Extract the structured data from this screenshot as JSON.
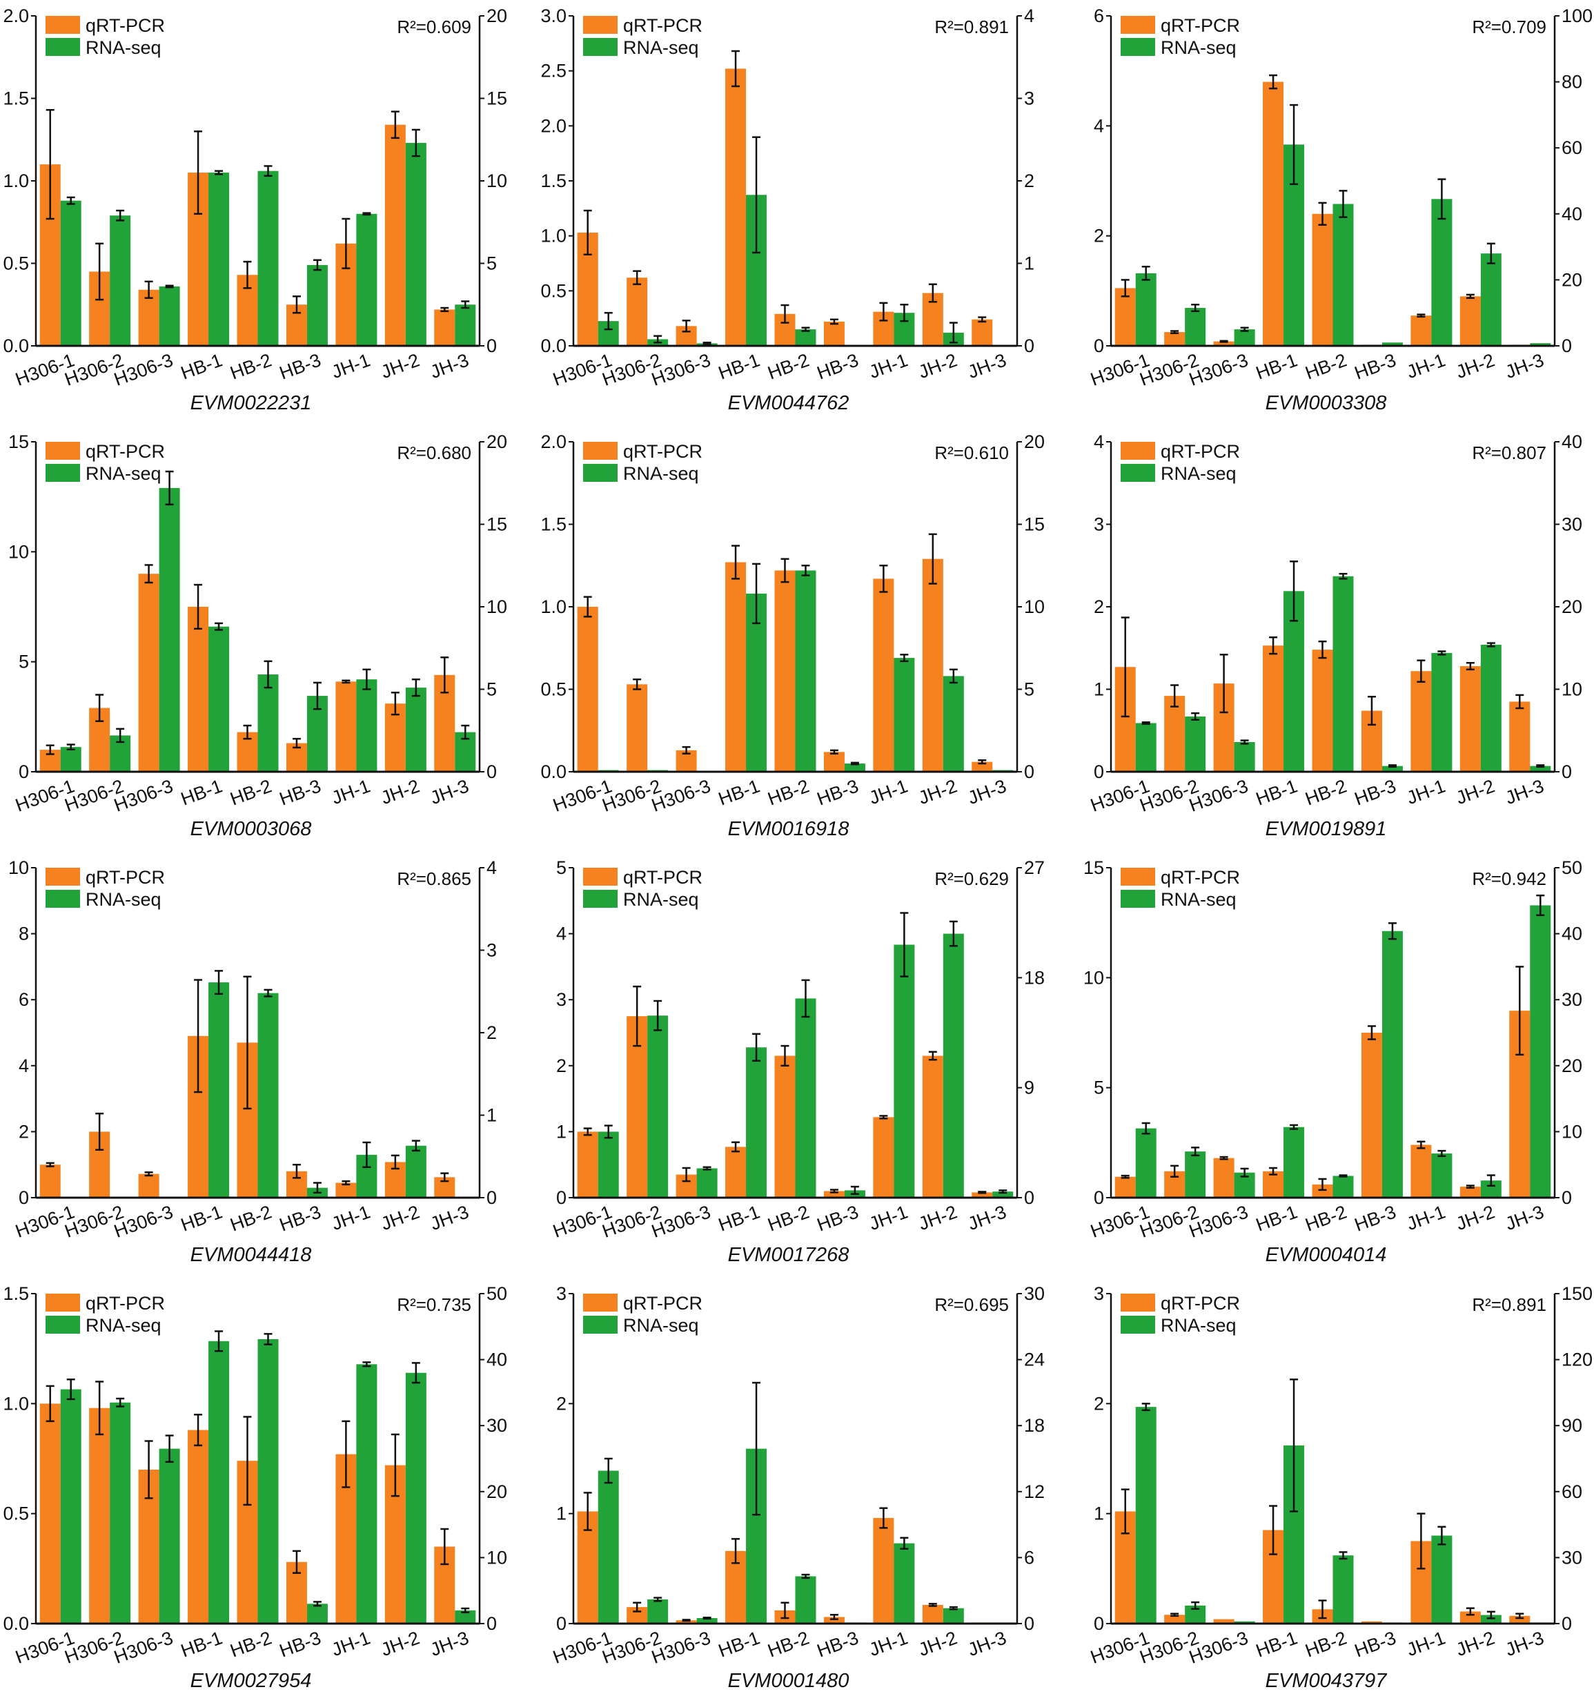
{
  "colors": {
    "qrt": "#F5821F",
    "rna": "#22A33A",
    "axis": "#111111"
  },
  "chart_data": {
    "type": "bar",
    "layout": "3 columns x 4 rows grid of dual-axis grouped bar charts",
    "categories": [
      "H306-1",
      "H306-2",
      "H306-3",
      "HB-1",
      "HB-2",
      "HB-3",
      "JH-1",
      "JH-2",
      "JH-3"
    ],
    "legend": [
      "qRT-PCR",
      "RNA-seq"
    ],
    "legend_placement": "top-left",
    "panels": [
      {
        "title": "EVM0022231",
        "r2": "R²=0.609",
        "left_ylim": [
          0,
          2.0
        ],
        "left_ticks": [
          "0.0",
          "0.5",
          "1.0",
          "1.5",
          "2.0"
        ],
        "right_ylim": [
          0,
          20
        ],
        "right_ticks": [
          "0",
          "5",
          "10",
          "15",
          "20"
        ],
        "qrt": [
          1.1,
          0.45,
          0.34,
          1.05,
          0.43,
          0.25,
          0.62,
          1.34,
          0.22
        ],
        "qrt_err": [
          0.33,
          0.17,
          0.05,
          0.25,
          0.08,
          0.05,
          0.15,
          0.08,
          0.01
        ],
        "rna": [
          8.8,
          7.9,
          3.6,
          10.5,
          10.6,
          4.9,
          8.0,
          12.3,
          2.5
        ],
        "rna_err": [
          0.2,
          0.3,
          0.05,
          0.1,
          0.3,
          0.3,
          0.05,
          0.8,
          0.2
        ]
      },
      {
        "title": "EVM0044762",
        "r2": "R²=0.891",
        "left_ylim": [
          0,
          3.0
        ],
        "left_ticks": [
          "0.0",
          "0.5",
          "1.0",
          "1.5",
          "2.0",
          "2.5",
          "3.0"
        ],
        "right_ylim": [
          0,
          4
        ],
        "right_ticks": [
          "0",
          "1",
          "2",
          "3",
          "4"
        ],
        "qrt": [
          1.03,
          0.62,
          0.18,
          2.52,
          0.29,
          0.22,
          0.31,
          0.48,
          0.24
        ],
        "qrt_err": [
          0.2,
          0.06,
          0.05,
          0.16,
          0.08,
          0.02,
          0.08,
          0.08,
          0.02
        ],
        "rna": [
          0.3,
          0.08,
          0.03,
          1.83,
          0.2,
          0,
          0.4,
          0.16,
          0
        ],
        "rna_err": [
          0.1,
          0.04,
          0.01,
          0.7,
          0.02,
          0,
          0.1,
          0.12,
          0
        ]
      },
      {
        "title": "EVM0003308",
        "r2": "R²=0.709",
        "left_ylim": [
          0,
          6
        ],
        "left_ticks": [
          "0",
          "2",
          "4",
          "6"
        ],
        "right_ylim": [
          0,
          100
        ],
        "right_ticks": [
          "0",
          "20",
          "40",
          "60",
          "80",
          "100"
        ],
        "qrt": [
          1.05,
          0.25,
          0.08,
          4.8,
          2.4,
          0.02,
          0.55,
          0.9,
          0.02
        ],
        "qrt_err": [
          0.15,
          0.02,
          0.01,
          0.12,
          0.2,
          0,
          0.02,
          0.03,
          0
        ],
        "rna": [
          22,
          11.5,
          5,
          61,
          43,
          1,
          44.5,
          28,
          0.8
        ],
        "rna_err": [
          2,
          1,
          0.5,
          12,
          4,
          0,
          6,
          3,
          0
        ]
      },
      {
        "title": "EVM0003068",
        "r2": "R²=0.680",
        "left_ylim": [
          0,
          15
        ],
        "left_ticks": [
          "0",
          "5",
          "10",
          "15"
        ],
        "right_ylim": [
          0,
          20
        ],
        "right_ticks": [
          "0",
          "5",
          "10",
          "15",
          "20"
        ],
        "qrt": [
          1.0,
          2.9,
          9.0,
          7.5,
          1.8,
          1.3,
          4.1,
          3.1,
          4.4
        ],
        "qrt_err": [
          0.2,
          0.6,
          0.4,
          1.0,
          0.3,
          0.2,
          0.05,
          0.5,
          0.8
        ],
        "rna": [
          1.5,
          2.2,
          17.2,
          8.8,
          5.9,
          4.6,
          5.6,
          5.1,
          2.4
        ],
        "rna_err": [
          0.15,
          0.4,
          1.0,
          0.2,
          0.8,
          0.8,
          0.6,
          0.5,
          0.4
        ]
      },
      {
        "title": "EVM0016918",
        "r2": "R²=0.610",
        "left_ylim": [
          0,
          2.0
        ],
        "left_ticks": [
          "0.0",
          "0.5",
          "1.0",
          "1.5",
          "2.0"
        ],
        "right_ylim": [
          0,
          20
        ],
        "right_ticks": [
          "0",
          "5",
          "10",
          "15",
          "20"
        ],
        "qrt": [
          1.0,
          0.53,
          0.13,
          1.27,
          1.22,
          0.12,
          1.17,
          1.29,
          0.06
        ],
        "qrt_err": [
          0.06,
          0.03,
          0.02,
          0.1,
          0.07,
          0.01,
          0.08,
          0.15,
          0.01
        ],
        "rna": [
          0.1,
          0.1,
          0.05,
          10.8,
          12.2,
          0.5,
          6.9,
          5.8,
          0.1
        ],
        "rna_err": [
          0,
          0,
          0,
          1.8,
          0.3,
          0.05,
          0.2,
          0.4,
          0
        ]
      },
      {
        "title": "EVM0019891",
        "r2": "R²=0.807",
        "left_ylim": [
          0,
          4
        ],
        "left_ticks": [
          "0",
          "1",
          "2",
          "3",
          "4"
        ],
        "right_ylim": [
          0,
          40
        ],
        "right_ticks": [
          "0",
          "10",
          "20",
          "30",
          "40"
        ],
        "qrt": [
          1.27,
          0.92,
          1.07,
          1.53,
          1.48,
          0.74,
          1.22,
          1.28,
          0.85
        ],
        "qrt_err": [
          0.6,
          0.13,
          0.35,
          0.1,
          0.1,
          0.17,
          0.13,
          0.04,
          0.08
        ],
        "rna": [
          5.9,
          6.7,
          3.6,
          21.9,
          23.7,
          0.7,
          14.4,
          15.4,
          0.7
        ],
        "rna_err": [
          0.1,
          0.4,
          0.2,
          3.6,
          0.3,
          0.1,
          0.2,
          0.2,
          0.1
        ]
      },
      {
        "title": "EVM0044418",
        "r2": "R²=0.865",
        "left_ylim": [
          0,
          10
        ],
        "left_ticks": [
          "0",
          "2",
          "4",
          "6",
          "8",
          "10"
        ],
        "right_ylim": [
          0,
          4
        ],
        "right_ticks": [
          "0",
          "1",
          "2",
          "3",
          "4"
        ],
        "qrt": [
          1.0,
          2.0,
          0.72,
          4.9,
          4.7,
          0.8,
          0.45,
          1.08,
          0.62
        ],
        "qrt_err": [
          0.05,
          0.55,
          0.05,
          1.7,
          2.0,
          0.2,
          0.05,
          0.2,
          0.12
        ],
        "rna": [
          0,
          0,
          0,
          2.61,
          2.48,
          0.12,
          0.52,
          0.63,
          0.01
        ],
        "rna_err": [
          0,
          0,
          0,
          0.14,
          0.04,
          0.06,
          0.15,
          0.06,
          0
        ]
      },
      {
        "title": "EVM0017268",
        "r2": "R²=0.629",
        "left_ylim": [
          0,
          5
        ],
        "left_ticks": [
          "0",
          "1",
          "2",
          "3",
          "4",
          "5"
        ],
        "right_ylim": [
          0,
          27
        ],
        "right_ticks": [
          "0",
          "9",
          "18",
          "27"
        ],
        "qrt": [
          1.0,
          2.75,
          0.35,
          0.77,
          2.15,
          0.1,
          1.22,
          2.15,
          0.08
        ],
        "qrt_err": [
          0.05,
          0.45,
          0.1,
          0.07,
          0.15,
          0.02,
          0.02,
          0.06,
          0.01
        ],
        "rna": [
          5.4,
          14.9,
          2.4,
          12.3,
          16.3,
          0.6,
          20.7,
          21.6,
          0.5
        ],
        "rna_err": [
          0.5,
          1.2,
          0.1,
          1.1,
          1.5,
          0.3,
          2.6,
          1.0,
          0.1
        ]
      },
      {
        "title": "EVM0004014",
        "r2": "R²=0.942",
        "left_ylim": [
          0,
          15
        ],
        "left_ticks": [
          "0",
          "5",
          "10",
          "15"
        ],
        "right_ylim": [
          0,
          50
        ],
        "right_ticks": [
          "0",
          "10",
          "20",
          "30",
          "40",
          "50"
        ],
        "qrt": [
          0.95,
          1.2,
          1.8,
          1.2,
          0.6,
          7.5,
          2.4,
          0.5,
          8.5
        ],
        "qrt_err": [
          0.05,
          0.25,
          0.05,
          0.15,
          0.25,
          0.3,
          0.15,
          0.05,
          2.0
        ],
        "rna": [
          10.5,
          7.0,
          3.8,
          10.7,
          3.3,
          40.4,
          6.7,
          2.6,
          44.3
        ],
        "rna_err": [
          0.8,
          0.6,
          0.6,
          0.3,
          0.1,
          1.2,
          0.4,
          0.8,
          1.5
        ]
      },
      {
        "title": "EVM0027954",
        "r2": "R²=0.735",
        "left_ylim": [
          0,
          1.5
        ],
        "left_ticks": [
          "0.0",
          "0.5",
          "1.0",
          "1.5"
        ],
        "right_ylim": [
          0,
          50
        ],
        "right_ticks": [
          "0",
          "10",
          "20",
          "30",
          "40",
          "50"
        ],
        "qrt": [
          1.0,
          0.98,
          0.7,
          0.88,
          0.74,
          0.28,
          0.77,
          0.72,
          0.35
        ],
        "qrt_err": [
          0.08,
          0.12,
          0.13,
          0.07,
          0.2,
          0.05,
          0.15,
          0.14,
          0.08
        ],
        "rna": [
          35.5,
          33.5,
          26.5,
          42.8,
          43.1,
          3.0,
          39.3,
          38.0,
          2.0
        ],
        "rna_err": [
          1.5,
          0.6,
          2,
          1.5,
          0.8,
          0.3,
          0.3,
          1.5,
          0.3
        ]
      },
      {
        "title": "EVM0001480",
        "r2": "R²=0.695",
        "left_ylim": [
          0,
          3
        ],
        "left_ticks": [
          "0",
          "1",
          "2",
          "3"
        ],
        "right_ylim": [
          0,
          30
        ],
        "right_ticks": [
          "0",
          "6",
          "12",
          "18",
          "24",
          "30"
        ],
        "qrt": [
          1.02,
          0.15,
          0.03,
          0.66,
          0.12,
          0.06,
          0.96,
          0.17,
          0.01
        ],
        "qrt_err": [
          0.17,
          0.04,
          0.005,
          0.11,
          0.07,
          0.02,
          0.09,
          0.01,
          0
        ],
        "rna": [
          13.9,
          2.2,
          0.5,
          15.9,
          4.3,
          0.1,
          7.3,
          1.4,
          0.1
        ],
        "rna_err": [
          1.1,
          0.15,
          0.05,
          6,
          0.15,
          0,
          0.5,
          0.1,
          0
        ]
      },
      {
        "title": "EVM0043797",
        "r2": "R²=0.891",
        "left_ylim": [
          0,
          3
        ],
        "left_ticks": [
          "0",
          "1",
          "2",
          "3"
        ],
        "right_ylim": [
          0,
          150
        ],
        "right_ticks": [
          "0",
          "30",
          "60",
          "90",
          "120",
          "150"
        ],
        "qrt": [
          1.02,
          0.08,
          0.04,
          0.85,
          0.13,
          0.02,
          0.75,
          0.11,
          0.07
        ],
        "qrt_err": [
          0.2,
          0.01,
          0,
          0.22,
          0.08,
          0,
          0.25,
          0.03,
          0.02
        ],
        "rna": [
          98.5,
          8.2,
          1,
          81,
          31,
          0.5,
          40,
          3.9,
          0.5
        ],
        "rna_err": [
          1.5,
          1.5,
          0,
          30,
          1.5,
          0,
          4,
          1.5,
          0
        ]
      }
    ]
  }
}
